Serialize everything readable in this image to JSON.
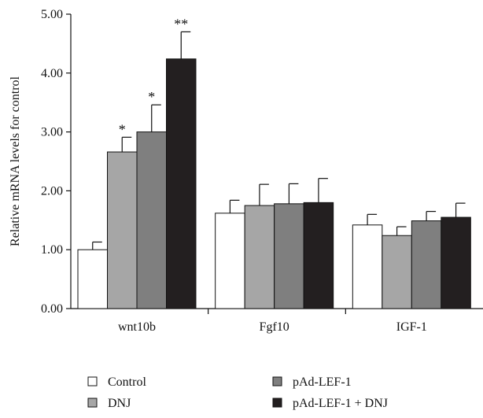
{
  "chart_data": {
    "type": "bar",
    "ylabel": "Relative mRNA levels for control",
    "ylim": [
      0,
      5
    ],
    "yticks": [
      "0.00",
      "1.00",
      "2.00",
      "3.00",
      "4.00",
      "5.00"
    ],
    "categories": [
      "wnt10b",
      "Fgf10",
      "IGF-1"
    ],
    "series": [
      {
        "name": "Control",
        "color": "#ffffff",
        "values": [
          1.0,
          1.62,
          1.42
        ],
        "errors": [
          0.13,
          0.22,
          0.18
        ]
      },
      {
        "name": "DNJ",
        "color": "#a6a6a6",
        "values": [
          2.66,
          1.75,
          1.24
        ],
        "errors": [
          0.25,
          0.36,
          0.15
        ]
      },
      {
        "name": "pAd-LEF-1",
        "color": "#7f7f7f",
        "values": [
          3.0,
          1.78,
          1.49
        ],
        "errors": [
          0.46,
          0.34,
          0.16
        ]
      },
      {
        "name": "pAd-LEF-1 + DNJ",
        "color": "#231f20",
        "values": [
          4.24,
          1.8,
          1.55
        ],
        "errors": [
          0.46,
          0.41,
          0.24
        ]
      }
    ],
    "annotations": [
      {
        "category": "wnt10b",
        "series": "DNJ",
        "text": "*"
      },
      {
        "category": "wnt10b",
        "series": "pAd-LEF-1",
        "text": "*"
      },
      {
        "category": "wnt10b",
        "series": "pAd-LEF-1 + DNJ",
        "text": "**"
      }
    ],
    "legend_position": "bottom"
  }
}
